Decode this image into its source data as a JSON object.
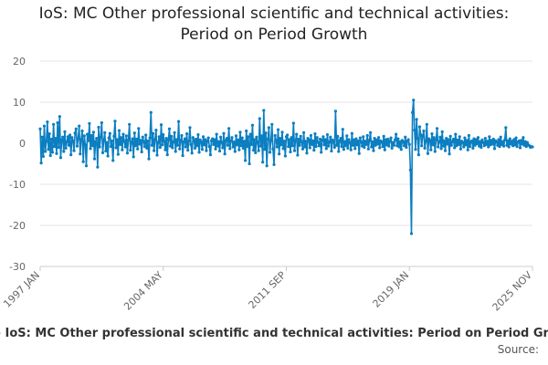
{
  "title_line1": "IoS: MC Other professional scientific and technical activities:",
  "title_line2": "Period on Period Growth",
  "legend_text": "IoS: MC Other professional scientific and technical activities: Period on Period Growth",
  "source_label": "Source:",
  "colors": {
    "series": "#0b7ec1",
    "grid": "#e6e6e6",
    "axis": "#cccccc",
    "tick_text": "#666666"
  },
  "chart_data": {
    "type": "line",
    "title": "IoS: MC Other professional scientific and technical activities: Period on Period Growth",
    "xlabel": "",
    "ylabel": "",
    "ylim": [
      -30,
      20
    ],
    "yticks": [
      20,
      10,
      0,
      -10,
      -20,
      -30
    ],
    "x_range": [
      "1997 JAN",
      "2025 NOV"
    ],
    "x_tick_labels": [
      "1997 JAN",
      "2004 MAY",
      "2011 SEP",
      "2019 JAN",
      "2025 NOV"
    ],
    "series": [
      {
        "name": "IoS: MC Other professional scientific and technical activities: Period on Period Growth",
        "x_start": "1997 JAN",
        "frequency": "monthly",
        "values": [
          3.5,
          -4.8,
          1.5,
          -3.2,
          4.2,
          -2.0,
          0.5,
          5.2,
          -1.5,
          2.3,
          -3.0,
          1.0,
          -2.2,
          4.6,
          -0.8,
          1.2,
          -2.5,
          5.0,
          -1.0,
          6.5,
          -3.5,
          0.8,
          1.5,
          -2.0,
          2.8,
          -1.2,
          0.3,
          1.6,
          -0.5,
          2.0,
          -2.8,
          1.4,
          0.6,
          -1.8,
          2.5,
          3.5,
          -0.7,
          1.1,
          4.2,
          -2.6,
          0.9,
          3.0,
          -4.5,
          1.8,
          -0.4,
          -5.5,
          2.2,
          0.6,
          4.8,
          -1.3,
          1.9,
          -0.6,
          2.7,
          -3.8,
          0.4,
          1.2,
          -5.8,
          3.9,
          -0.9,
          1.5,
          5.0,
          -2.3,
          0.7,
          2.6,
          -1.9,
          0.2,
          -3.1,
          1.3,
          2.4,
          -0.8,
          0.6,
          -4.2,
          1.7,
          5.4,
          -1.1,
          0.9,
          -2.7,
          3.1,
          -0.3,
          1.4,
          -1.6,
          2.2,
          0.5,
          -0.9,
          1.8,
          -2.4,
          0.8,
          4.6,
          -1.7,
          0.3,
          1.1,
          -3.3,
          2.5,
          -0.6,
          1.0,
          -1.4,
          3.6,
          -0.2,
          0.7,
          -2.1,
          1.5,
          0.4,
          -0.8,
          2.0,
          -1.2,
          0.6,
          -3.8,
          1.3,
          7.5,
          -0.5,
          2.4,
          -1.8,
          0.9,
          3.2,
          -2.9,
          0.2,
          1.6,
          -1.0,
          4.5,
          -0.4,
          2.1,
          0.5,
          -1.6,
          1.2,
          -2.8,
          0.8,
          3.5,
          -0.7,
          1.7,
          -1.1,
          0.3,
          2.6,
          -2.0,
          0.9,
          -0.5,
          5.3,
          -1.4,
          0.6,
          1.9,
          -3.0,
          0.4,
          1.1,
          -0.9,
          2.3,
          -1.7,
          0.5,
          3.8,
          -0.3,
          -2.4,
          1.4,
          0.7,
          -1.2,
          1.0,
          -0.6,
          2.1,
          -2.2,
          0.8,
          0.3,
          -1.5,
          1.6,
          -0.4,
          0.9,
          -1.8,
          0.5,
          1.3,
          -0.8,
          -2.8,
          0.6,
          1.1,
          -0.3,
          0.9,
          -1.4,
          2.2,
          -0.7,
          0.4,
          -1.9,
          1.5,
          0.2,
          -1.1,
          2.4,
          -2.6,
          0.7,
          1.2,
          -0.5,
          3.6,
          -1.3,
          0.6,
          1.4,
          -0.9,
          0.3,
          -2.0,
          1.8,
          -0.4,
          0.8,
          -1.6,
          2.7,
          -0.6,
          1.3,
          -1.2,
          0.5,
          -4.2,
          3.0,
          -0.8,
          1.6,
          -5.0,
          2.2,
          -0.3,
          4.4,
          -1.7,
          0.9,
          -2.3,
          1.5,
          0.2,
          -1.8,
          6.0,
          -0.7,
          1.8,
          -4.6,
          8.0,
          -1.5,
          2.5,
          -5.5,
          1.0,
          3.8,
          -2.2,
          0.6,
          4.6,
          -1.4,
          -5.2,
          1.9,
          0.7,
          -0.9,
          3.3,
          -2.6,
          1.2,
          -0.4,
          2.7,
          -1.3,
          0.5,
          -3.1,
          1.6,
          2.0,
          -0.8,
          0.9,
          -2.1,
          1.4,
          -0.6,
          4.9,
          -1.8,
          0.7,
          2.2,
          -2.9,
          1.0,
          -0.5,
          1.7,
          0.3,
          -1.4,
          2.6,
          -0.9,
          0.5,
          -2.4,
          1.2,
          0.8,
          -1.1,
          1.9,
          -0.3,
          0.6,
          -1.7,
          2.3,
          -0.8,
          1.4,
          0.2,
          -0.6,
          1.0,
          -2.2,
          0.7,
          1.6,
          -0.4,
          0.9,
          -1.3,
          2.1,
          -0.7,
          0.3,
          1.5,
          -1.9,
          0.8,
          0.4,
          -1.0,
          7.8,
          -0.5,
          1.7,
          -2.0,
          0.6,
          1.2,
          -0.8,
          3.4,
          -1.5,
          0.4,
          -0.6,
          1.8,
          -1.2,
          0.9,
          0.2,
          -1.6,
          2.4,
          -0.5,
          0.8,
          -1.3,
          1.1,
          -0.4,
          0.6,
          -2.5,
          1.3,
          0.3,
          -0.7,
          1.6,
          -1.0,
          0.5,
          -0.3,
          1.9,
          -1.4,
          0.7,
          2.6,
          -0.9,
          0.4,
          -1.8,
          1.2,
          -0.5,
          0.8,
          -0.2,
          1.4,
          -1.1,
          0.6,
          0.3,
          -0.8,
          1.7,
          -1.6,
          0.9,
          -0.4,
          1.0,
          -0.7,
          0.5,
          1.3,
          -1.2,
          0.2,
          -0.5,
          0.8,
          2.2,
          -0.6,
          1.1,
          -0.9,
          0.4,
          -1.5,
          0.7,
          0.3,
          -0.6,
          1.5,
          -1.0,
          0.5,
          0.9,
          -0.3,
          -6.5,
          -22.0,
          7.5,
          10.5,
          3.2,
          -1.5,
          5.8,
          1.2,
          -2.8,
          4.0,
          2.1,
          -0.6,
          1.8,
          3.0,
          -1.2,
          0.5,
          4.6,
          -2.5,
          1.1,
          0.7,
          -1.6,
          2.3,
          -0.4,
          1.4,
          -2.0,
          0.8,
          3.6,
          -0.9,
          0.3,
          1.5,
          -1.3,
          2.8,
          -0.7,
          0.6,
          -1.8,
          1.2,
          -0.2,
          0.9,
          -2.6,
          1.7,
          -0.5,
          0.4,
          1.0,
          -1.1,
          2.2,
          -0.6,
          0.8,
          -0.3,
          1.6,
          -1.4,
          0.5,
          0.2,
          -0.9,
          1.3,
          -0.4,
          0.7,
          -1.6,
          1.9,
          -0.8,
          0.3,
          0.6,
          -1.2,
          1.1,
          -0.5,
          0.9,
          -0.1,
          1.4,
          -0.7,
          0.4,
          -1.0,
          0.8,
          0.2,
          -0.6,
          1.2,
          -0.3,
          0.5,
          -0.9,
          1.6,
          -0.4,
          0.7,
          -0.2,
          1.0,
          -1.3,
          0.6,
          0.3,
          -0.5,
          0.9,
          -0.8,
          1.5,
          -0.3,
          0.4,
          -0.7,
          0.8,
          3.8,
          -0.5,
          0.6,
          -0.9,
          1.1,
          -0.2,
          0.5,
          -0.6,
          0.9,
          -0.4,
          1.3,
          -0.8,
          0.3,
          0.6,
          -1.1,
          0.7,
          -0.2,
          1.4,
          -0.5,
          0.4,
          -0.8,
          0.2,
          -0.4,
          -0.6,
          -1.0,
          -0.8,
          -0.9
        ]
      }
    ]
  }
}
